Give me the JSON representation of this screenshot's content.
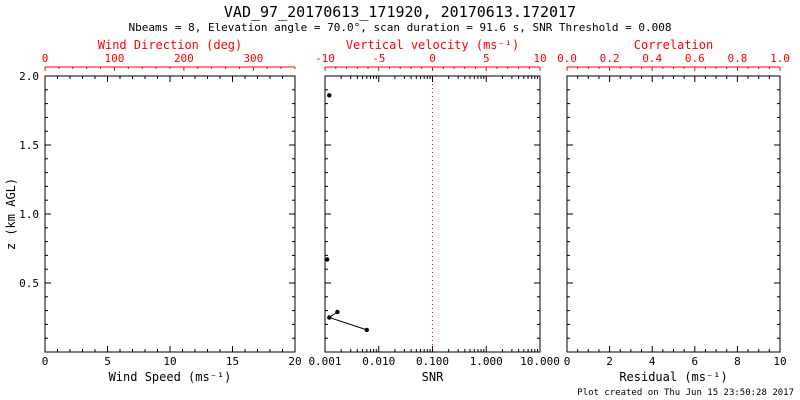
{
  "header": {
    "title": "VAD_97_20170613_171920, 20170613.172017",
    "subtitle": "Nbeams = 8, Elevation angle = 70.0°, scan duration = 91.6 s, SNR Threshold = 0.008"
  },
  "footer": {
    "created": "Plot created on Thu Jun 15 23:50:28 2017"
  },
  "colors": {
    "axis": "#000000",
    "secondary": "#ff0000",
    "data": "#000000",
    "background": "#ffffff"
  },
  "chart_data": [
    {
      "type": "scatter",
      "panel": "wind-speed",
      "xlabel": "Wind Speed (ms⁻¹)",
      "xscale": "linear",
      "xlim": [
        0,
        20
      ],
      "xticks": [
        0,
        5,
        10,
        15,
        20
      ],
      "xtick_labels": [
        "0",
        "5",
        "10",
        "15",
        "20"
      ],
      "xminor_step": 1,
      "ylabel": "z (km AGL)",
      "ylim": [
        0,
        2
      ],
      "yticks": [
        0,
        0.5,
        1,
        1.5,
        2
      ],
      "ytick_labels": [
        "",
        "0.5",
        "1.0",
        "1.5",
        "2.0"
      ],
      "yminor_step": 0.1,
      "top_axis": {
        "label": "Wind Direction (deg)",
        "lim": [
          0,
          360
        ],
        "ticks": [
          0,
          100,
          200,
          300
        ],
        "tick_labels": [
          "0",
          "100",
          "200",
          "300"
        ],
        "minor_step": 20,
        "color": "#ff0000"
      },
      "series": []
    },
    {
      "type": "scatter",
      "panel": "snr",
      "xlabel": "SNR",
      "xscale": "log",
      "xlim": [
        0.001,
        10
      ],
      "xticks": [
        0.001,
        0.01,
        0.1,
        1,
        10
      ],
      "xtick_labels": [
        "0.001",
        "0.010",
        "0.100",
        "1.000",
        "10.000"
      ],
      "ylim": [
        0,
        2
      ],
      "yticks": [
        0,
        0.5,
        1,
        1.5,
        2
      ],
      "ytick_labels": null,
      "yminor_step": 0.1,
      "top_axis": {
        "label": "Vertical velocity (ms⁻¹)",
        "lim": [
          -10,
          10
        ],
        "ticks": [
          -10,
          -5,
          0,
          5,
          10
        ],
        "tick_labels": [
          "-10",
          "-5",
          "0",
          "5",
          "10"
        ],
        "minor_step": 1,
        "color": "#ff0000"
      },
      "reference_line": {
        "x": 0.1,
        "color": "#ff0000",
        "style": "dotted"
      },
      "series": [
        {
          "name": "snr-profile",
          "line": true,
          "points": [
            [
              0.0017,
              0.29
            ],
            [
              0.0012,
              0.25
            ],
            [
              0.006,
              0.16
            ]
          ]
        },
        {
          "name": "snr-point-upper",
          "line": false,
          "points": [
            [
              0.0012,
              1.86
            ]
          ]
        },
        {
          "name": "snr-point-mid",
          "line": false,
          "points": [
            [
              0.0011,
              0.67
            ]
          ]
        }
      ]
    },
    {
      "type": "scatter",
      "panel": "residual",
      "xlabel": "Residual (ms⁻¹)",
      "xscale": "linear",
      "xlim": [
        0,
        10
      ],
      "xticks": [
        0,
        2,
        4,
        6,
        8,
        10
      ],
      "xtick_labels": [
        "0",
        "2",
        "4",
        "6",
        "8",
        "10"
      ],
      "xminor_step": 0.5,
      "ylim": [
        0,
        2
      ],
      "yticks": [
        0,
        0.5,
        1,
        1.5,
        2
      ],
      "ytick_labels": null,
      "yminor_step": 0.1,
      "top_axis": {
        "label": "Correlation",
        "lim": [
          0,
          1
        ],
        "ticks": [
          0,
          0.2,
          0.4,
          0.6,
          0.8,
          1
        ],
        "tick_labels": [
          "0.0",
          "0.2",
          "0.4",
          "0.6",
          "0.8",
          "1.0"
        ],
        "minor_step": 0.05,
        "color": "#ff0000"
      },
      "series": []
    }
  ]
}
